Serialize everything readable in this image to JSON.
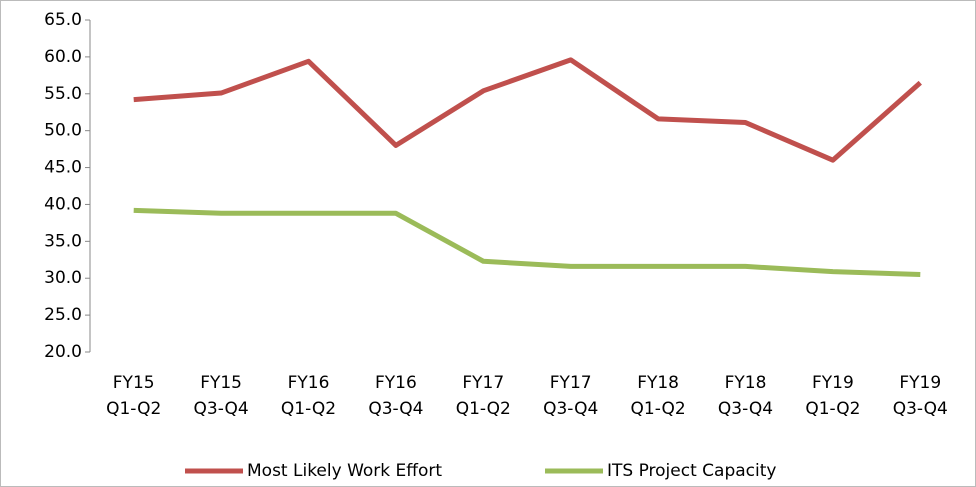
{
  "chart_data": {
    "type": "line",
    "categories": [
      "FY15\nQ1-Q2",
      "FY15\nQ3-Q4",
      "FY16\nQ1-Q2",
      "FY16\nQ3-Q4",
      "FY17\nQ1-Q2",
      "FY17\nQ3-Q4",
      "FY18\nQ1-Q2",
      "FY18\nQ3-Q4",
      "FY19\nQ1-Q2",
      "FY19\nQ3-Q4"
    ],
    "series": [
      {
        "name": "Most Likely Work Effort",
        "color": "#c0504d",
        "values": [
          54.2,
          55.1,
          59.4,
          48.0,
          55.4,
          59.6,
          51.6,
          51.1,
          46.0,
          56.5
        ]
      },
      {
        "name": "ITS Project Capacity",
        "color": "#9bbb59",
        "values": [
          39.2,
          38.8,
          38.8,
          38.8,
          32.3,
          31.6,
          31.6,
          31.6,
          30.9,
          30.5
        ]
      }
    ],
    "ylim": [
      20,
      65
    ],
    "yticks": [
      {
        "value": 20,
        "label": "20.0"
      },
      {
        "value": 25,
        "label": "25.0"
      },
      {
        "value": 30,
        "label": "30.0"
      },
      {
        "value": 35,
        "label": "35.0"
      },
      {
        "value": 40,
        "label": "40.0"
      },
      {
        "value": 45,
        "label": "45.0"
      },
      {
        "value": 50,
        "label": "50.0"
      },
      {
        "value": 55,
        "label": "55.0"
      },
      {
        "value": 60,
        "label": "60.0"
      },
      {
        "value": 65,
        "label": "65.0"
      }
    ],
    "grid": false,
    "legend": "bottom"
  }
}
